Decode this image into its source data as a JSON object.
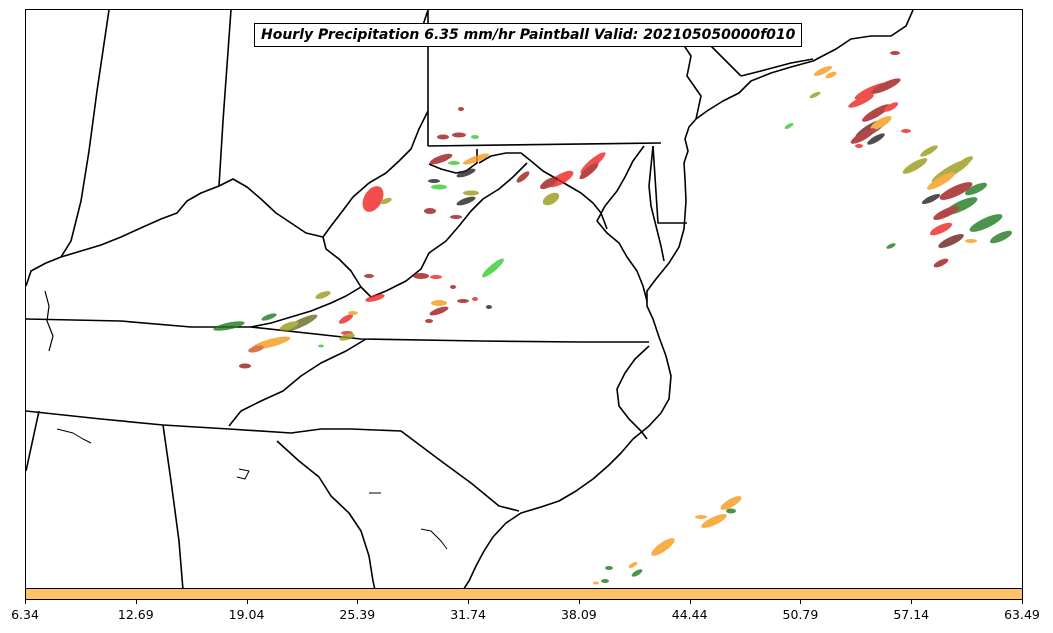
{
  "title": "Hourly Precipitation 6.35 mm/hr Paintball Valid: 202105050000f010",
  "colorbar": {
    "color": "#ffc266",
    "ticks": [
      "6.34",
      "12.69",
      "19.04",
      "25.39",
      "31.74",
      "38.09",
      "44.44",
      "50.79",
      "57.14",
      "63.49"
    ]
  },
  "colors": {
    "red": "#ee2222",
    "darkred": "#a01818",
    "orange": "#f59a1a",
    "green": "#33cc33",
    "darkgreen": "#1e7a1e",
    "olive": "#9a9a1a",
    "darkolive": "#6b6b22",
    "black": "#222222",
    "sienna": "#cc5522"
  }
}
